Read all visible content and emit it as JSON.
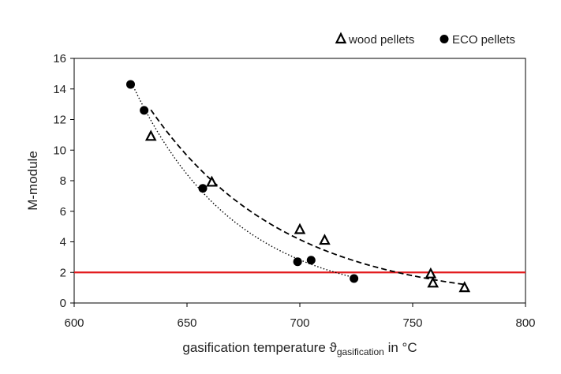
{
  "chart_data": {
    "type": "scatter",
    "xlabel_main": "gasification temperature ϑ",
    "xlabel_sub": "gasification",
    "xlabel_tail": " in °C",
    "ylabel": "M-module",
    "xlim": [
      600,
      800
    ],
    "ylim": [
      0,
      16
    ],
    "x_ticks": [
      "600",
      "650",
      "700",
      "750",
      "800"
    ],
    "y_ticks": [
      "0",
      "2",
      "4",
      "6",
      "8",
      "10",
      "12",
      "14",
      "16"
    ],
    "grid": false,
    "legend_position": "top-right",
    "series": [
      {
        "name": "wood pellets",
        "marker": "triangle-open",
        "trendline": "dashed",
        "points": [
          {
            "x": 634,
            "y": 10.9
          },
          {
            "x": 661,
            "y": 7.9
          },
          {
            "x": 700,
            "y": 4.8
          },
          {
            "x": 711,
            "y": 4.1
          },
          {
            "x": 758,
            "y": 1.9
          },
          {
            "x": 759,
            "y": 1.3
          },
          {
            "x": 773,
            "y": 1.0
          }
        ]
      },
      {
        "name": "ECO pellets",
        "marker": "circle-filled",
        "trendline": "dotted",
        "points": [
          {
            "x": 625,
            "y": 14.3
          },
          {
            "x": 631,
            "y": 12.6
          },
          {
            "x": 657,
            "y": 7.5
          },
          {
            "x": 699,
            "y": 2.7
          },
          {
            "x": 705,
            "y": 2.8
          },
          {
            "x": 724,
            "y": 1.6
          }
        ]
      }
    ],
    "reference_line": {
      "y": 2,
      "color": "#e31a1c"
    },
    "colors": {
      "marker": "#000000",
      "axis": "#000000",
      "text": "#222222"
    }
  }
}
